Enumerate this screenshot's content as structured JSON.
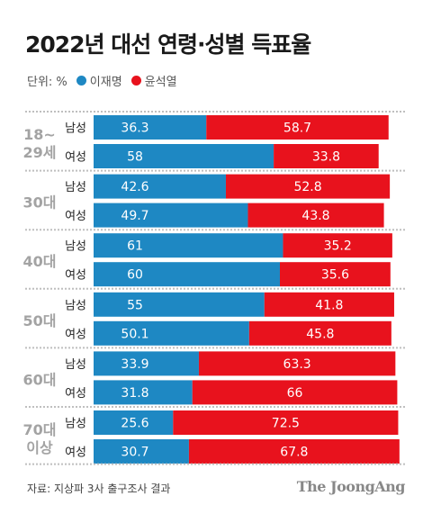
{
  "header": {
    "title": "2022년 대선 연령·성별 득표율",
    "unit": "단위: %"
  },
  "colors": {
    "lee": "#1e88c3",
    "yoon": "#e8121d",
    "sep": "#bfbfbf",
    "group_label": "#a3a3a3"
  },
  "chart_data": {
    "type": "bar",
    "stacked": true,
    "orientation": "horizontal",
    "legend_position": "top-left",
    "series_names": [
      "이재명",
      "윤석열"
    ],
    "groups": [
      {
        "label": [
          "18~",
          "29세"
        ],
        "rows": [
          {
            "gender": "남성",
            "values": [
              36.3,
              58.7
            ],
            "labels": [
              "36.3",
              "58.7"
            ]
          },
          {
            "gender": "여성",
            "values": [
              58,
              33.8
            ],
            "labels": [
              "58",
              "33.8"
            ]
          }
        ]
      },
      {
        "label": [
          "30대"
        ],
        "rows": [
          {
            "gender": "남성",
            "values": [
              42.6,
              52.8
            ],
            "labels": [
              "42.6",
              "52.8"
            ]
          },
          {
            "gender": "여성",
            "values": [
              49.7,
              43.8
            ],
            "labels": [
              "49.7",
              "43.8"
            ]
          }
        ]
      },
      {
        "label": [
          "40대"
        ],
        "rows": [
          {
            "gender": "남성",
            "values": [
              61,
              35.2
            ],
            "labels": [
              "61",
              "35.2"
            ]
          },
          {
            "gender": "여성",
            "values": [
              60,
              35.6
            ],
            "labels": [
              "60",
              "35.6"
            ]
          }
        ]
      },
      {
        "label": [
          "50대"
        ],
        "rows": [
          {
            "gender": "남성",
            "values": [
              55,
              41.8
            ],
            "labels": [
              "55",
              "41.8"
            ]
          },
          {
            "gender": "여성",
            "values": [
              50.1,
              45.8
            ],
            "labels": [
              "50.1",
              "45.8"
            ]
          }
        ]
      },
      {
        "label": [
          "60대"
        ],
        "rows": [
          {
            "gender": "남성",
            "values": [
              33.9,
              63.3
            ],
            "labels": [
              "33.9",
              "63.3"
            ]
          },
          {
            "gender": "여성",
            "values": [
              31.8,
              66
            ],
            "labels": [
              "31.8",
              "66"
            ]
          }
        ]
      },
      {
        "label": [
          "70대",
          "이상"
        ],
        "rows": [
          {
            "gender": "남성",
            "values": [
              25.6,
              72.5
            ],
            "labels": [
              "25.6",
              "72.5"
            ]
          },
          {
            "gender": "여성",
            "values": [
              30.7,
              67.8
            ],
            "labels": [
              "30.7",
              "67.8"
            ]
          }
        ]
      }
    ]
  },
  "footer": {
    "source": "자료: 지상파 3사 출구조사 결과",
    "brand": "The JoongAng"
  }
}
